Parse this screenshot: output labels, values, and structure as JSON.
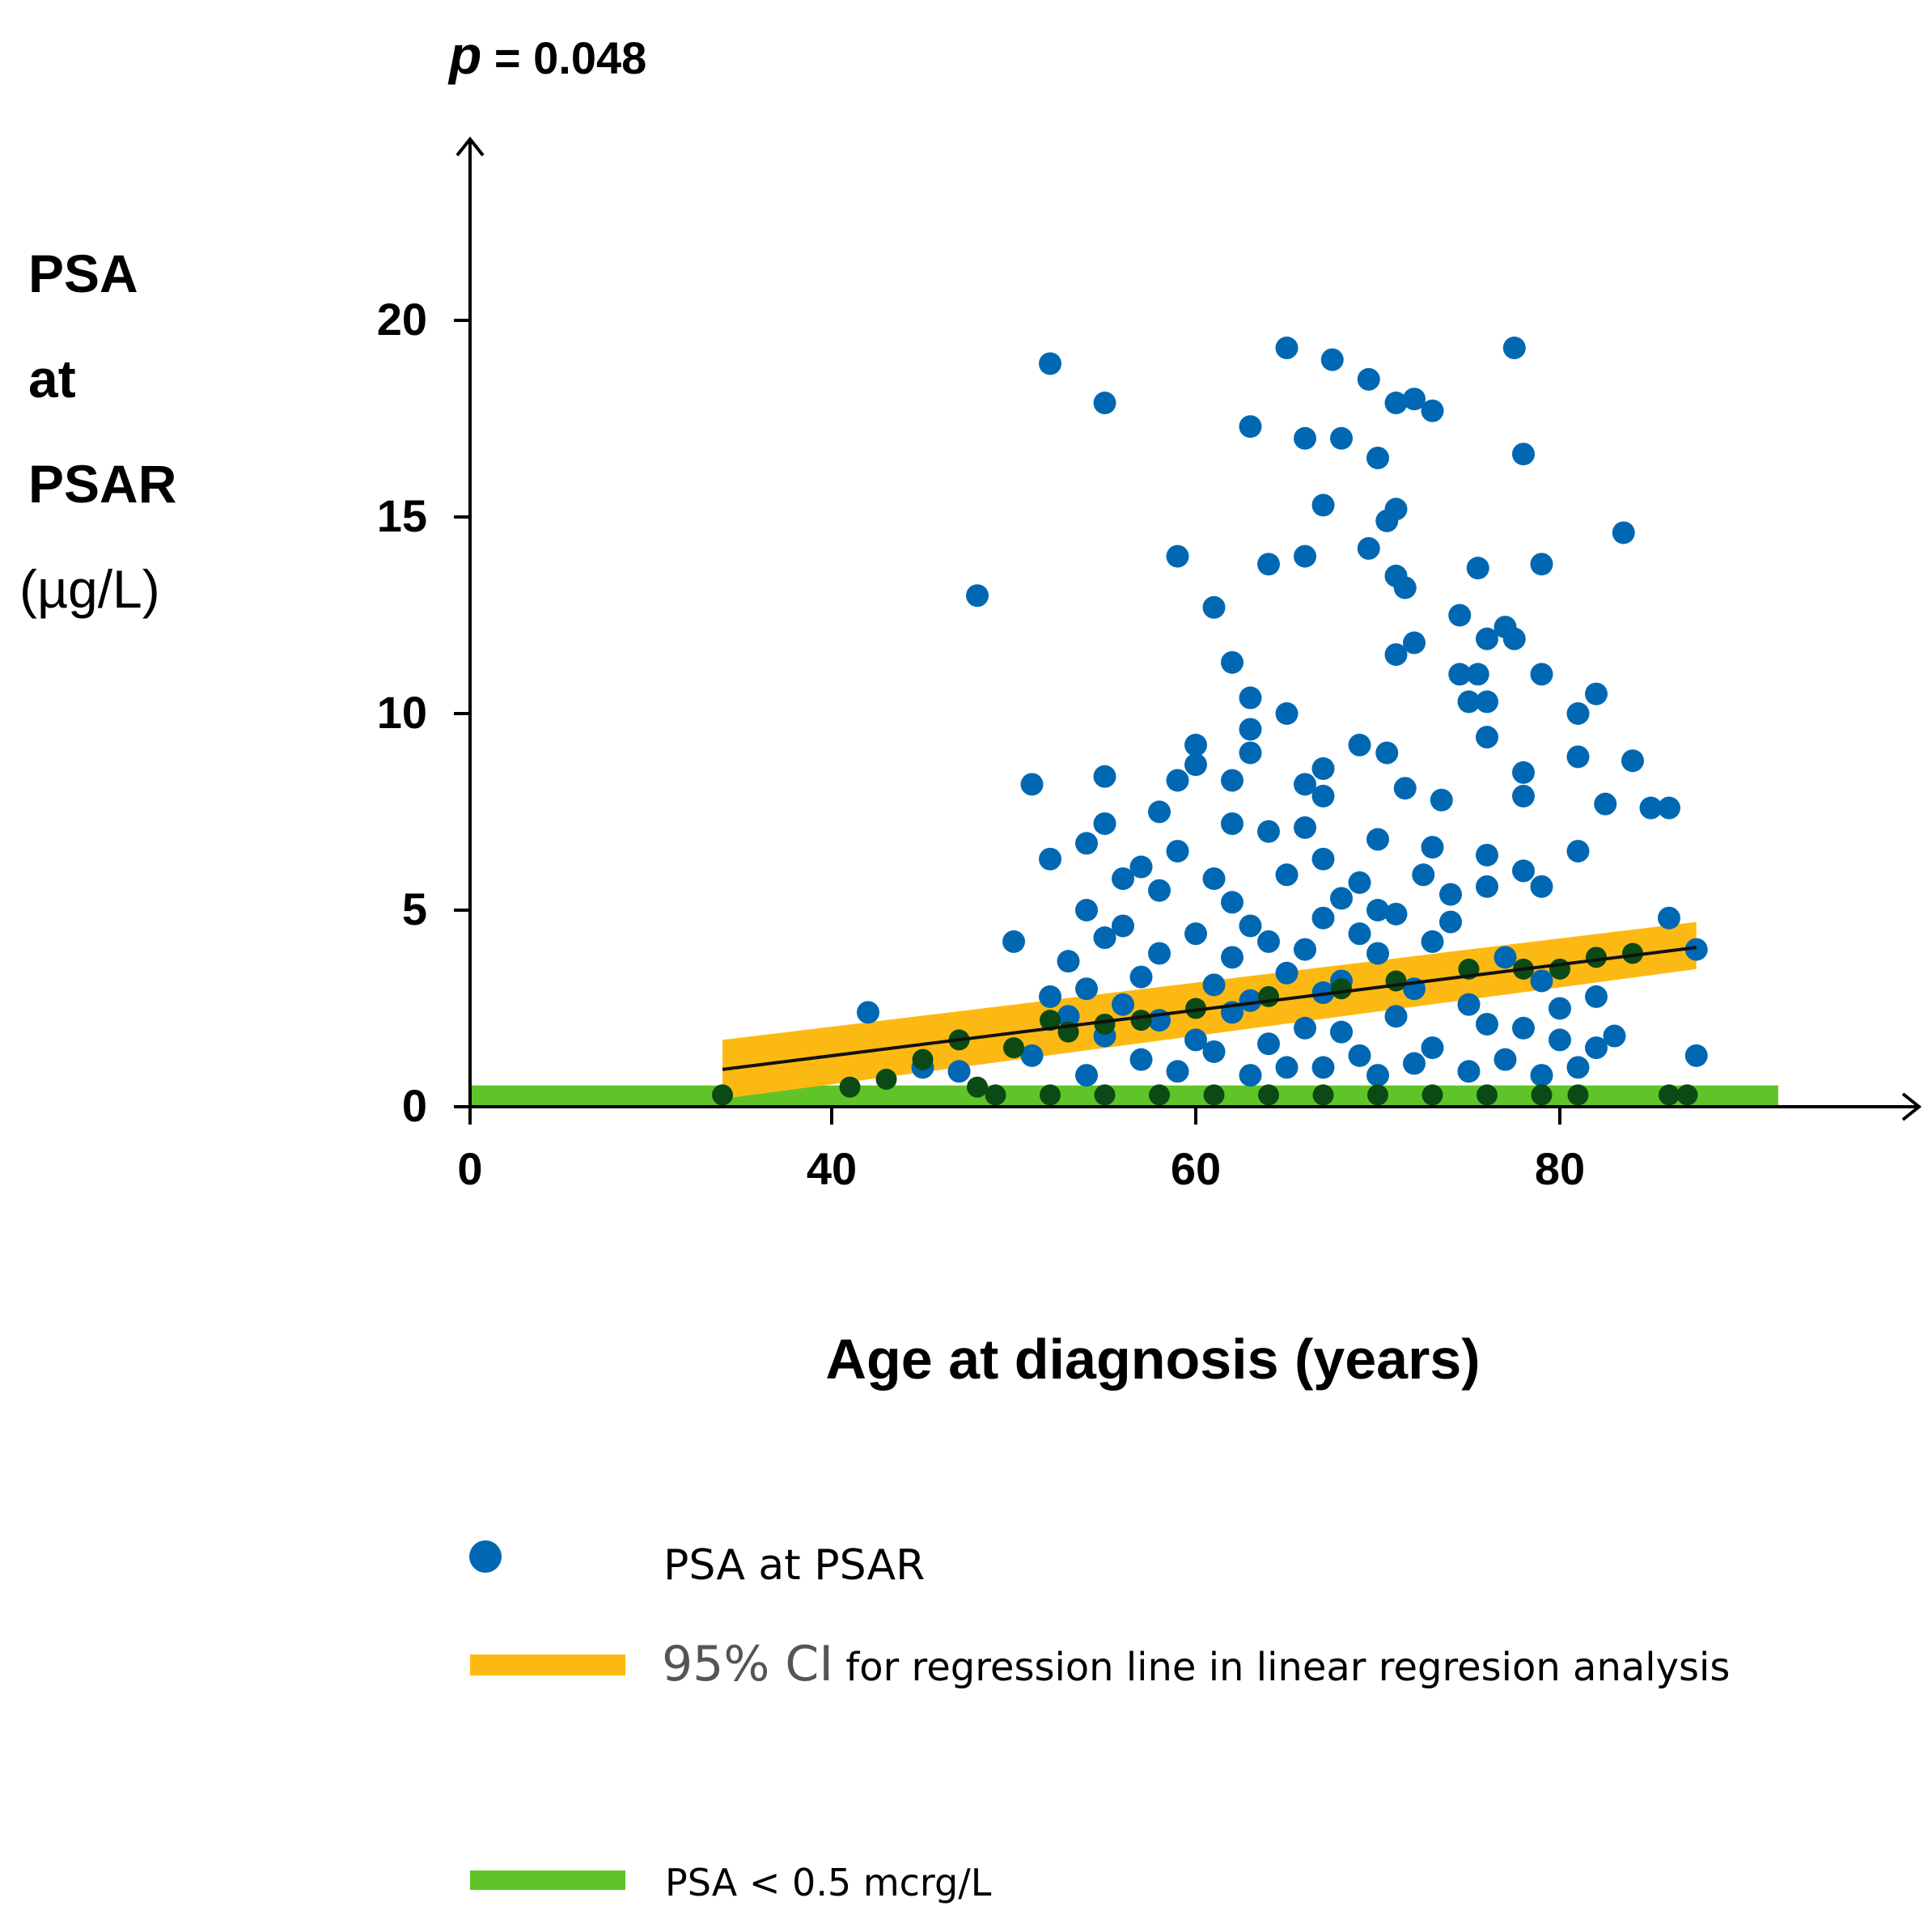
{
  "annotation": {
    "p_symbol": "p",
    "p_rest": "= 0.048"
  },
  "ylabel": {
    "line1": "PSA",
    "line2": "at",
    "line3": "PSAR",
    "unit": "(µg/L)"
  },
  "xlabel": "Age at diagnosis (years)",
  "legend": {
    "psa_label": "PSA at PSAR",
    "ci_prefix": "95% CI",
    "ci_rest": " for regression line in linear regresion analysis",
    "green_label": "PSA < 0.5 mcrg/L"
  },
  "colors": {
    "points": "#0068b3",
    "ci": "#fdb913",
    "threshold": "#5fc427",
    "line": "#111111",
    "below_threshold_points": "#0b4a14"
  },
  "chart_data": {
    "type": "scatter",
    "title": "",
    "xlabel": "Age at diagnosis (years)",
    "ylabel": "PSA at PSAR (µg/L)",
    "x_ticks": [
      0,
      40,
      60,
      80
    ],
    "y_ticks": [
      0,
      5,
      10,
      15,
      20
    ],
    "xlim": [
      0,
      100
    ],
    "ylim": [
      0,
      24
    ],
    "axis_break": "x axis jumps from 0 to 40",
    "regression": {
      "x": [
        34,
        87.5
      ],
      "y": [
        0.95,
        4.05
      ]
    },
    "ci_band": {
      "x": [
        34,
        87.5
      ],
      "lower": [
        0.2,
        3.5
      ],
      "upper": [
        1.7,
        4.7
      ]
    },
    "threshold": {
      "y": 0.5,
      "x": [
        0,
        92
      ],
      "label": "PSA < 0.5 mcrg/L"
    },
    "series": [
      {
        "name": "PSA at PSAR",
        "points": [
          [
            52,
            18.9
          ],
          [
            55,
            17.9
          ],
          [
            65,
            19.3
          ],
          [
            67.5,
            19.0
          ],
          [
            77.5,
            19.3
          ],
          [
            69.5,
            18.5
          ],
          [
            72,
            18.0
          ],
          [
            71,
            17.9
          ],
          [
            73,
            17.7
          ],
          [
            63,
            17.3
          ],
          [
            66,
            17.0
          ],
          [
            68,
            17.0
          ],
          [
            70,
            16.5
          ],
          [
            78,
            16.6
          ],
          [
            67,
            15.3
          ],
          [
            71,
            15.2
          ],
          [
            59,
            14.0
          ],
          [
            70.5,
            14.9
          ],
          [
            83.5,
            14.6
          ],
          [
            64,
            13.8
          ],
          [
            66,
            14.0
          ],
          [
            69.5,
            14.2
          ],
          [
            75.5,
            13.7
          ],
          [
            79,
            13.8
          ],
          [
            71,
            13.5
          ],
          [
            71.5,
            13.2
          ],
          [
            48,
            13.0
          ],
          [
            61,
            12.7
          ],
          [
            74.5,
            12.5
          ],
          [
            77,
            12.2
          ],
          [
            76,
            11.9
          ],
          [
            77.5,
            11.9
          ],
          [
            72,
            11.8
          ],
          [
            71,
            11.5
          ],
          [
            62,
            11.3
          ],
          [
            75.5,
            11.0
          ],
          [
            74.5,
            11.0
          ],
          [
            79,
            11.0
          ],
          [
            82,
            10.5
          ],
          [
            63,
            10.4
          ],
          [
            75,
            10.3
          ],
          [
            76,
            10.3
          ],
          [
            65,
            10.0
          ],
          [
            81,
            10.0
          ],
          [
            63,
            9.6
          ],
          [
            76,
            9.4
          ],
          [
            60,
            9.2
          ],
          [
            69,
            9.2
          ],
          [
            63,
            9.0
          ],
          [
            70.5,
            9.0
          ],
          [
            81,
            8.9
          ],
          [
            60,
            8.7
          ],
          [
            67,
            8.6
          ],
          [
            78,
            8.5
          ],
          [
            55,
            8.4
          ],
          [
            84,
            8.8
          ],
          [
            59,
            8.3
          ],
          [
            51,
            8.2
          ],
          [
            62,
            8.3
          ],
          [
            66,
            8.2
          ],
          [
            71.5,
            8.1
          ],
          [
            67,
            7.9
          ],
          [
            73.5,
            7.8
          ],
          [
            78,
            7.9
          ],
          [
            82.5,
            7.7
          ],
          [
            58,
            7.5
          ],
          [
            85,
            7.6
          ],
          [
            86,
            7.6
          ],
          [
            62,
            7.2
          ],
          [
            64,
            7.0
          ],
          [
            66,
            7.1
          ],
          [
            55,
            7.2
          ],
          [
            70,
            6.8
          ],
          [
            54,
            6.7
          ],
          [
            59,
            6.5
          ],
          [
            73,
            6.6
          ],
          [
            76,
            6.4
          ],
          [
            81,
            6.5
          ],
          [
            52,
            6.3
          ],
          [
            57,
            6.1
          ],
          [
            67,
            6.3
          ],
          [
            65,
            5.9
          ],
          [
            72.5,
            5.9
          ],
          [
            56,
            5.8
          ],
          [
            78,
            6.0
          ],
          [
            61,
            5.8
          ],
          [
            69,
            5.7
          ],
          [
            79,
            5.6
          ],
          [
            58,
            5.5
          ],
          [
            62,
            5.2
          ],
          [
            68,
            5.3
          ],
          [
            70,
            5.0
          ],
          [
            74,
            5.4
          ],
          [
            76,
            5.6
          ],
          [
            54,
            5.0
          ],
          [
            56,
            4.6
          ],
          [
            63,
            4.6
          ],
          [
            67,
            4.8
          ],
          [
            71,
            4.9
          ],
          [
            74,
            4.7
          ],
          [
            86,
            4.8
          ],
          [
            55,
            4.3
          ],
          [
            60,
            4.4
          ],
          [
            64,
            4.2
          ],
          [
            69,
            4.4
          ],
          [
            73,
            4.2
          ],
          [
            50,
            4.2
          ],
          [
            53,
            3.7
          ],
          [
            58,
            3.9
          ],
          [
            62,
            3.8
          ],
          [
            66,
            4.0
          ],
          [
            70,
            3.9
          ],
          [
            77,
            3.8
          ],
          [
            87.5,
            4.0
          ],
          [
            54,
            3.0
          ],
          [
            57,
            3.3
          ],
          [
            61,
            3.1
          ],
          [
            65,
            3.4
          ],
          [
            68,
            3.2
          ],
          [
            72,
            3.0
          ],
          [
            79,
            3.2
          ],
          [
            52,
            2.8
          ],
          [
            56,
            2.6
          ],
          [
            63,
            2.7
          ],
          [
            67,
            2.9
          ],
          [
            75,
            2.6
          ],
          [
            80,
            2.5
          ],
          [
            82,
            2.8
          ],
          [
            42,
            2.4
          ],
          [
            53,
            2.3
          ],
          [
            58,
            2.2
          ],
          [
            62,
            2.4
          ],
          [
            66,
            2.0
          ],
          [
            71,
            2.3
          ],
          [
            76,
            2.1
          ],
          [
            78,
            2.0
          ],
          [
            83,
            1.8
          ],
          [
            55,
            1.8
          ],
          [
            60,
            1.7
          ],
          [
            64,
            1.6
          ],
          [
            68,
            1.9
          ],
          [
            73,
            1.5
          ],
          [
            80,
            1.7
          ],
          [
            82,
            1.5
          ],
          [
            87.5,
            1.3
          ],
          [
            45,
            1.0
          ],
          [
            51,
            1.3
          ],
          [
            57,
            1.2
          ],
          [
            61,
            1.4
          ],
          [
            65,
            1.0
          ],
          [
            69,
            1.3
          ],
          [
            72,
            1.1
          ],
          [
            77,
            1.2
          ],
          [
            81,
            1.0
          ],
          [
            47,
            0.9
          ],
          [
            54,
            0.8
          ],
          [
            59,
            0.9
          ],
          [
            63,
            0.8
          ],
          [
            67,
            1.0
          ],
          [
            70,
            0.8
          ],
          [
            75,
            0.9
          ],
          [
            79,
            0.8
          ]
        ]
      },
      {
        "name": "PSA below threshold (dark green)",
        "points": [
          [
            34,
            0.3
          ],
          [
            41,
            0.5
          ],
          [
            43,
            0.7
          ],
          [
            45,
            1.2
          ],
          [
            47,
            1.7
          ],
          [
            48,
            0.5
          ],
          [
            50,
            1.5
          ],
          [
            52,
            2.2
          ],
          [
            53,
            1.9
          ],
          [
            55,
            2.1
          ],
          [
            57,
            2.2
          ],
          [
            60,
            2.5
          ],
          [
            64,
            2.8
          ],
          [
            68,
            3.0
          ],
          [
            71,
            3.2
          ],
          [
            75,
            3.5
          ],
          [
            78,
            3.5
          ],
          [
            80,
            3.5
          ],
          [
            82,
            3.8
          ],
          [
            84,
            3.9
          ],
          [
            86,
            0.3
          ],
          [
            87,
            0.3
          ],
          [
            49,
            0.3
          ],
          [
            52,
            0.3
          ],
          [
            55,
            0.3
          ],
          [
            58,
            0.3
          ],
          [
            61,
            0.3
          ],
          [
            64,
            0.3
          ],
          [
            67,
            0.3
          ],
          [
            70,
            0.3
          ],
          [
            73,
            0.3
          ],
          [
            76,
            0.3
          ],
          [
            79,
            0.3
          ],
          [
            81,
            0.3
          ]
        ]
      }
    ],
    "legend": [
      "PSA at PSAR",
      "95% CI for regression line in linear regresion analysis",
      "PSA < 0.5 mcrg/L"
    ]
  }
}
